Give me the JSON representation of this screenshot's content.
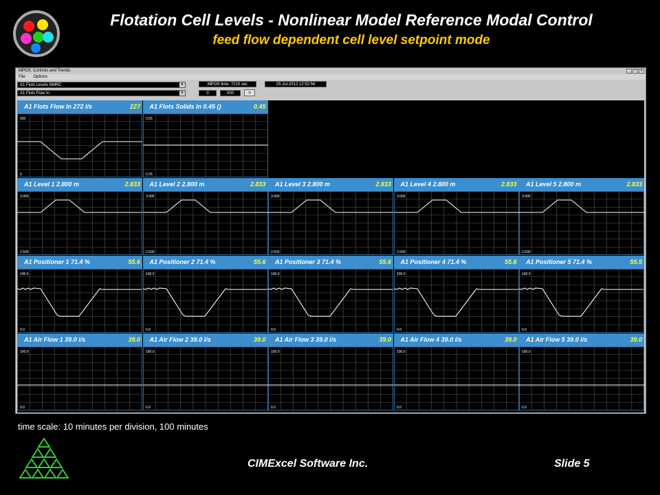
{
  "slide": {
    "title": "Flotation Cell Levels - Nonlinear Model Reference Modal Control",
    "subtitle": "feed flow dependent cell level setpoint mode",
    "footnote": "time scale: 10 minutes per division, 100 minutes",
    "company": "CIMExcel Software Inc.",
    "slide_label": "Slide 5",
    "logo_icon": "color-dots-logo-icon",
    "footer_icon": "triangle-pyramid-logo-icon",
    "colors": {
      "accent_title": "#ffcc00",
      "panel_header": "#3c8ece",
      "header_value": "#ffff33"
    }
  },
  "window": {
    "title": "MPOS: Controls and Trends",
    "menu": [
      "File",
      "Options"
    ],
    "selector1": "A1 Flots Levels NMRC",
    "selector2": "A1 Flots Flow In",
    "mpos_time": "MPOS time: 7210  sec",
    "date": "25-Jul-2012  12:52:56",
    "field_a": "0",
    "field_b": "500",
    "go_label": ">"
  },
  "panels": [
    {
      "label": "A1 Flots Flow In   272  l/s",
      "value": "227",
      "ymax": "500",
      "ymin": "0"
    },
    {
      "label": "A1 Flots Solids In   0.45  ()",
      "value": "0.45",
      "ymax": "0.55",
      "ymin": "0.25"
    },
    {
      "label": "A1 Level 1   2.800  m",
      "value": "2.833",
      "ymax": "3.000",
      "ymin": "2.500"
    },
    {
      "label": "A1 Level 2   2.800  m",
      "value": "2.833",
      "ymax": "3.000",
      "ymin": "2.500"
    },
    {
      "label": "A1 Level 3   2.800  m",
      "value": "2.833",
      "ymax": "3.000",
      "ymin": "2.500"
    },
    {
      "label": "A1 Level 4   2.800  m",
      "value": "2.833",
      "ymax": "3.000",
      "ymin": "2.500"
    },
    {
      "label": "A1 Level 5   2.800  m",
      "value": "2.833",
      "ymax": "3.000",
      "ymin": "2.500"
    },
    {
      "label": "A1 Positioner 1   71.4  %",
      "value": "55.6",
      "ymax": "100.0",
      "ymin": "0.0"
    },
    {
      "label": "A1 Positioner 2   71.4  %",
      "value": "55.6",
      "ymax": "100.0",
      "ymin": "0.0"
    },
    {
      "label": "A1 Positioner 3   71.4  %",
      "value": "55.6",
      "ymax": "100.0",
      "ymin": "0.0"
    },
    {
      "label": "A1 Positioner 4   71.4  %",
      "value": "55.6",
      "ymax": "100.0",
      "ymin": "0.0"
    },
    {
      "label": "A1 Positioner 5   71.4  %",
      "value": "55.5",
      "ymax": "100.0",
      "ymin": "0.0"
    },
    {
      "label": "A1 Air Flow 1   39.0  l/s",
      "value": "39.0",
      "ymax": "100.0",
      "ymin": "0.0"
    },
    {
      "label": "A1 Air Flow 2   39.0  l/s",
      "value": "39.0",
      "ymax": "100.0",
      "ymin": "0.0"
    },
    {
      "label": "A1 Air Flow 3   39.0  l/s",
      "value": "39.0",
      "ymax": "100.0",
      "ymin": "0.0"
    },
    {
      "label": "A1 Air Flow 4   39.0  l/s",
      "value": "39.0",
      "ymax": "100.0",
      "ymin": "0.0"
    },
    {
      "label": "A1 Air Flow 5   39.0  l/s",
      "value": "39.0",
      "ymax": "100.0",
      "ymin": "0.0"
    }
  ]
}
